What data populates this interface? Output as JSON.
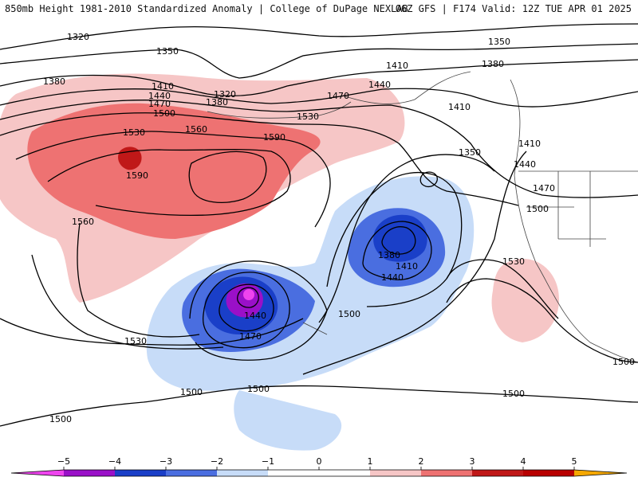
{
  "header": {
    "title_left": "850mb Height 1981-2010 Standardized Anomaly | College of DuPage NEXLAB",
    "title_right": "06Z GFS | F174 Valid: 12Z TUE APR 01 2025"
  },
  "colors": {
    "anom_neg5": "#ee44ee",
    "anom_neg4": "#9a10c8",
    "anom_neg3": "#1a3fc8",
    "anom_neg2": "#4a6ee0",
    "anom_neg1": "#c7dcf8",
    "anom_pos1": "#f6c6c6",
    "anom_pos2": "#ee7272",
    "anom_pos3": "#c01818",
    "anom_pos4": "#b80000",
    "anom_pos5": "#f5a800"
  },
  "contour_labels": [
    "1320",
    "1350",
    "1410",
    "1350",
    "1380",
    "1380",
    "1410",
    "1440",
    "1470",
    "1500",
    "1320",
    "1380",
    "1440",
    "1470",
    "1530",
    "1560",
    "1590",
    "1530",
    "1590",
    "1560",
    "1410",
    "1350",
    "1410",
    "1440",
    "1470",
    "1500",
    "1380",
    "1410",
    "1440",
    "1440",
    "1470",
    "1500",
    "1530",
    "1530",
    "1500",
    "1500",
    "1500",
    "1500",
    "1500"
  ],
  "colorbar": {
    "ticks": [
      "−5",
      "−4",
      "−3",
      "−2",
      "−1",
      "0",
      "1",
      "2",
      "3",
      "4",
      "5"
    ]
  }
}
